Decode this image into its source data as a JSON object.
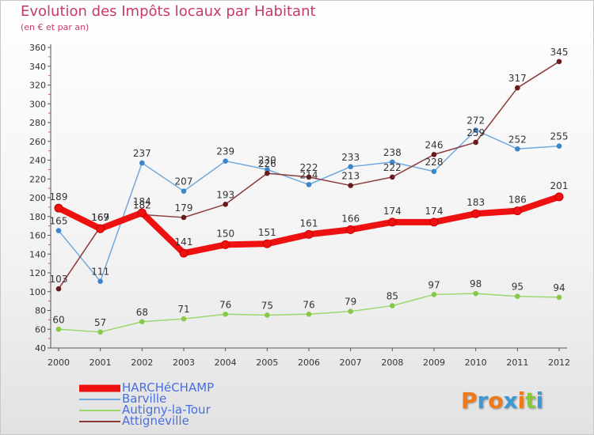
{
  "title": "Evolution des Impôts locaux par Habitant",
  "subtitle": "(en € et par an)",
  "logo_chars": [
    {
      "ch": "P",
      "color": "#f07a1a"
    },
    {
      "ch": "r",
      "color": "#3a9ad6"
    },
    {
      "ch": "o",
      "color": "#f07a1a"
    },
    {
      "ch": "x",
      "color": "#3a9ad6"
    },
    {
      "ch": "i",
      "color": "#f07a1a"
    },
    {
      "ch": "t",
      "color": "#8cc63e"
    },
    {
      "ch": "i",
      "color": "#3a9ad6"
    }
  ],
  "chart_data": {
    "type": "line",
    "title": "Evolution des Impôts locaux par Habitant",
    "subtitle": "(en € et par an)",
    "x": [
      "2000",
      "2001",
      "2002",
      "2003",
      "2004",
      "2005",
      "2006",
      "2007",
      "2008",
      "2009",
      "2010",
      "2011",
      "2012"
    ],
    "ylim": [
      40,
      360
    ],
    "yticks": [
      40,
      60,
      80,
      100,
      120,
      140,
      160,
      180,
      200,
      220,
      240,
      260,
      280,
      300,
      320,
      340,
      360
    ],
    "grid": false,
    "legend_position": "bottom-left",
    "series": [
      {
        "name": "HARCHéCHAMP",
        "color": "#ee1111",
        "marker_fill": "#ee1111",
        "width": 8,
        "values": [
          189,
          167,
          184,
          141,
          150,
          151,
          161,
          166,
          174,
          174,
          183,
          186,
          201
        ],
        "labels": [
          "189",
          "167",
          "184",
          "141",
          "150",
          "151",
          "161",
          "166",
          "174",
          "174",
          "183",
          "186",
          "201"
        ]
      },
      {
        "name": "Barville",
        "color": "#6fa8dc",
        "marker_fill": "#3a86c8",
        "width": 1.5,
        "values": [
          165,
          111,
          237,
          207,
          239,
          230,
          214,
          233,
          238,
          228,
          272,
          252,
          255
        ],
        "labels": [
          "165",
          "111",
          "237",
          "207",
          "239",
          "230",
          "214",
          "233",
          "238",
          "228",
          "272",
          "252",
          "255"
        ]
      },
      {
        "name": "Autigny-la-Tour",
        "color": "#9ad66a",
        "marker_fill": "#86c84a",
        "width": 1.5,
        "values": [
          60,
          57,
          68,
          71,
          76,
          75,
          76,
          79,
          85,
          97,
          98,
          95,
          94
        ],
        "labels": [
          "60",
          "57",
          "68",
          "71",
          "76",
          "75",
          "76",
          "79",
          "85",
          "97",
          "98",
          "95",
          "94"
        ]
      },
      {
        "name": "Attignéville",
        "color": "#8b3a3a",
        "marker_fill": "#6a1a1a",
        "width": 1.5,
        "values": [
          103,
          169,
          182,
          179,
          193,
          226,
          222,
          213,
          222,
          246,
          259,
          317,
          345
        ],
        "labels": [
          "103",
          "169",
          "182",
          "179",
          "193",
          "226",
          "222",
          "213",
          "222",
          "246",
          "259",
          "317",
          "345"
        ]
      }
    ]
  }
}
